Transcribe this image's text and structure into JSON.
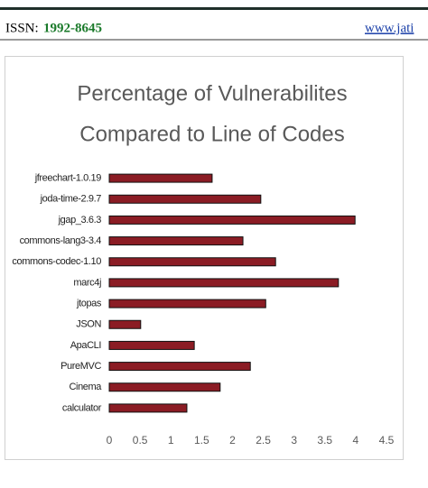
{
  "header": {
    "issn_label": "ISSN:",
    "issn": "1992-8645",
    "url": "www.jati"
  },
  "chart_data": {
    "type": "hbar",
    "title": [
      "Percentage of Vulnerabilites",
      "Compared to Line of Codes"
    ],
    "categories": [
      "jfreechart-1.0.19",
      "joda-time-2.9.7",
      "jgap_3.6.3",
      "commons-lang3-3.4",
      "commons-codec-1.10",
      "marc4j",
      "jtopas",
      "JSON",
      "ApaCLI",
      "PureMVC",
      "Cinema",
      "calculator"
    ],
    "values": [
      1.67,
      2.46,
      3.99,
      2.17,
      2.7,
      3.72,
      2.54,
      0.51,
      1.38,
      2.29,
      1.8,
      1.26
    ],
    "color": "#8b1c24",
    "xlim": [
      0,
      4.5
    ],
    "xticks": [
      0,
      0.5,
      1,
      1.5,
      2,
      2.5,
      3,
      3.5,
      4,
      4.5
    ],
    "grid": false
  }
}
